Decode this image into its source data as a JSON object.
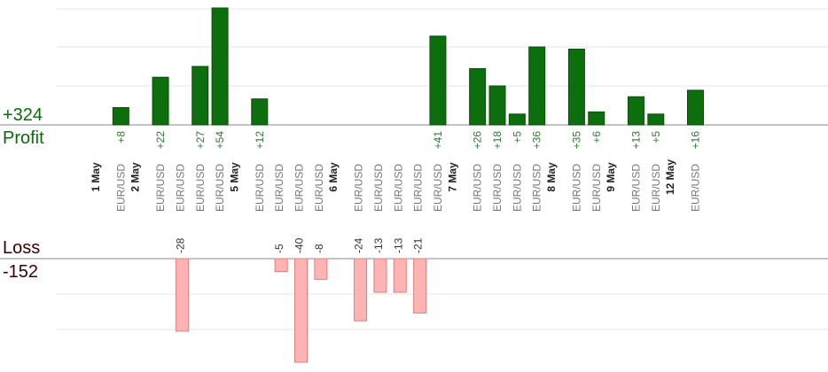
{
  "summary": {
    "profit_total": "+324",
    "profit_label": "Profit",
    "loss_label": "Loss",
    "loss_total": "-152"
  },
  "chart_data": {
    "type": "bar",
    "title": "",
    "xlabel": "",
    "ylabel": "",
    "grid": true,
    "profit_ylim": [
      0,
      60
    ],
    "loss_ylim": [
      0,
      45
    ],
    "colors": {
      "profit_fill": "#0d6e0d",
      "profit_edge": "#0a4d0a",
      "loss_fill": "#ffb3b3",
      "loss_edge": "#e08080",
      "profit_text": "#2a7a2a",
      "loss_text": "#333333",
      "grid": "#e6e6e6",
      "axis": "#888888",
      "date_text": "#222222",
      "symbol_text": "#777777"
    },
    "groups": [
      {
        "date": "1 May",
        "trades": [
          {
            "symbol": "EUR/USD",
            "value": 8,
            "label": "+8"
          }
        ]
      },
      {
        "date": "2 May",
        "trades": [
          {
            "symbol": "EUR/USD",
            "value": 22,
            "label": "+22"
          },
          {
            "symbol": "EUR/USD",
            "value": -28,
            "label": "-28"
          },
          {
            "symbol": "EUR/USD",
            "value": 27,
            "label": "+27"
          },
          {
            "symbol": "EUR/USD",
            "value": 54,
            "label": "+54"
          }
        ]
      },
      {
        "date": "5 May",
        "trades": [
          {
            "symbol": "EUR/USD",
            "value": 12,
            "label": "+12"
          },
          {
            "symbol": "EUR/USD",
            "value": -5,
            "label": "-5"
          },
          {
            "symbol": "EUR/USD",
            "value": -40,
            "label": "-40"
          },
          {
            "symbol": "EUR/USD",
            "value": -8,
            "label": "-8"
          }
        ]
      },
      {
        "date": "6 May",
        "trades": [
          {
            "symbol": "EUR/USD",
            "value": -24,
            "label": "-24"
          },
          {
            "symbol": "EUR/USD",
            "value": -13,
            "label": "-13"
          },
          {
            "symbol": "EUR/USD",
            "value": -13,
            "label": "-13"
          },
          {
            "symbol": "EUR/USD",
            "value": -21,
            "label": "-21"
          },
          {
            "symbol": "EUR/USD",
            "value": 41,
            "label": "+41"
          }
        ]
      },
      {
        "date": "7 May",
        "trades": [
          {
            "symbol": "EUR/USD",
            "value": 26,
            "label": "+26"
          },
          {
            "symbol": "EUR/USD",
            "value": 18,
            "label": "+18"
          },
          {
            "symbol": "EUR/USD",
            "value": 5,
            "label": "+5"
          },
          {
            "symbol": "EUR/USD",
            "value": 36,
            "label": "+36"
          }
        ]
      },
      {
        "date": "8 May",
        "trades": [
          {
            "symbol": "EUR/USD",
            "value": 35,
            "label": "+35"
          },
          {
            "symbol": "EUR/USD",
            "value": 6,
            "label": "+6"
          }
        ]
      },
      {
        "date": "9 May",
        "trades": [
          {
            "symbol": "EUR/USD",
            "value": 13,
            "label": "+13"
          },
          {
            "symbol": "EUR/USD",
            "value": 5,
            "label": "+5"
          }
        ]
      },
      {
        "date": "12 May",
        "trades": [
          {
            "symbol": "EUR/USD",
            "value": 16,
            "label": "+16"
          }
        ]
      }
    ]
  }
}
